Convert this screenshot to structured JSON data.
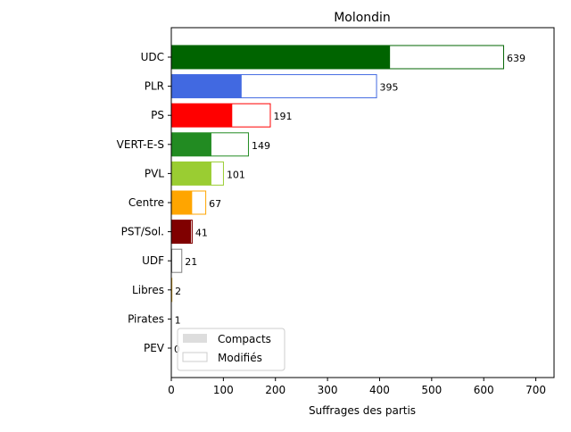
{
  "chart_data": {
    "type": "bar",
    "orientation": "horizontal",
    "stacked": true,
    "title": "Molondin",
    "xlabel": "Suffrages des partis",
    "ylabel": "",
    "xlim": [
      0,
      735
    ],
    "xticks": [
      0,
      100,
      200,
      300,
      400,
      500,
      600,
      700
    ],
    "grid": false,
    "legend_position": "lower-left",
    "categories": [
      "UDC",
      "PLR",
      "PS",
      "VERT-E-S",
      "PVL",
      "Centre",
      "PST/Sol.",
      "UDF",
      "Libres",
      "Pirates",
      "PEV"
    ],
    "colors": [
      "#006400",
      "#4169e1",
      "#ff0000",
      "#228b22",
      "#9acd32",
      "#ffa500",
      "#800000",
      "#808080",
      "#daa520",
      "#800080",
      "#ffd700"
    ],
    "series": [
      {
        "name": "Compacts",
        "values": [
          420,
          135,
          117,
          77,
          77,
          40,
          38,
          1,
          1,
          0,
          0
        ]
      },
      {
        "name": "Modifiés",
        "values": [
          219,
          260,
          74,
          72,
          24,
          27,
          3,
          20,
          1,
          1,
          0
        ]
      }
    ],
    "totals": [
      639,
      395,
      191,
      149,
      101,
      67,
      41,
      21,
      2,
      1,
      0
    ],
    "legend": [
      {
        "label": "Compacts",
        "swatch": "#dddddd"
      },
      {
        "label": "Modifiés",
        "swatch": "#ffffff"
      }
    ]
  }
}
